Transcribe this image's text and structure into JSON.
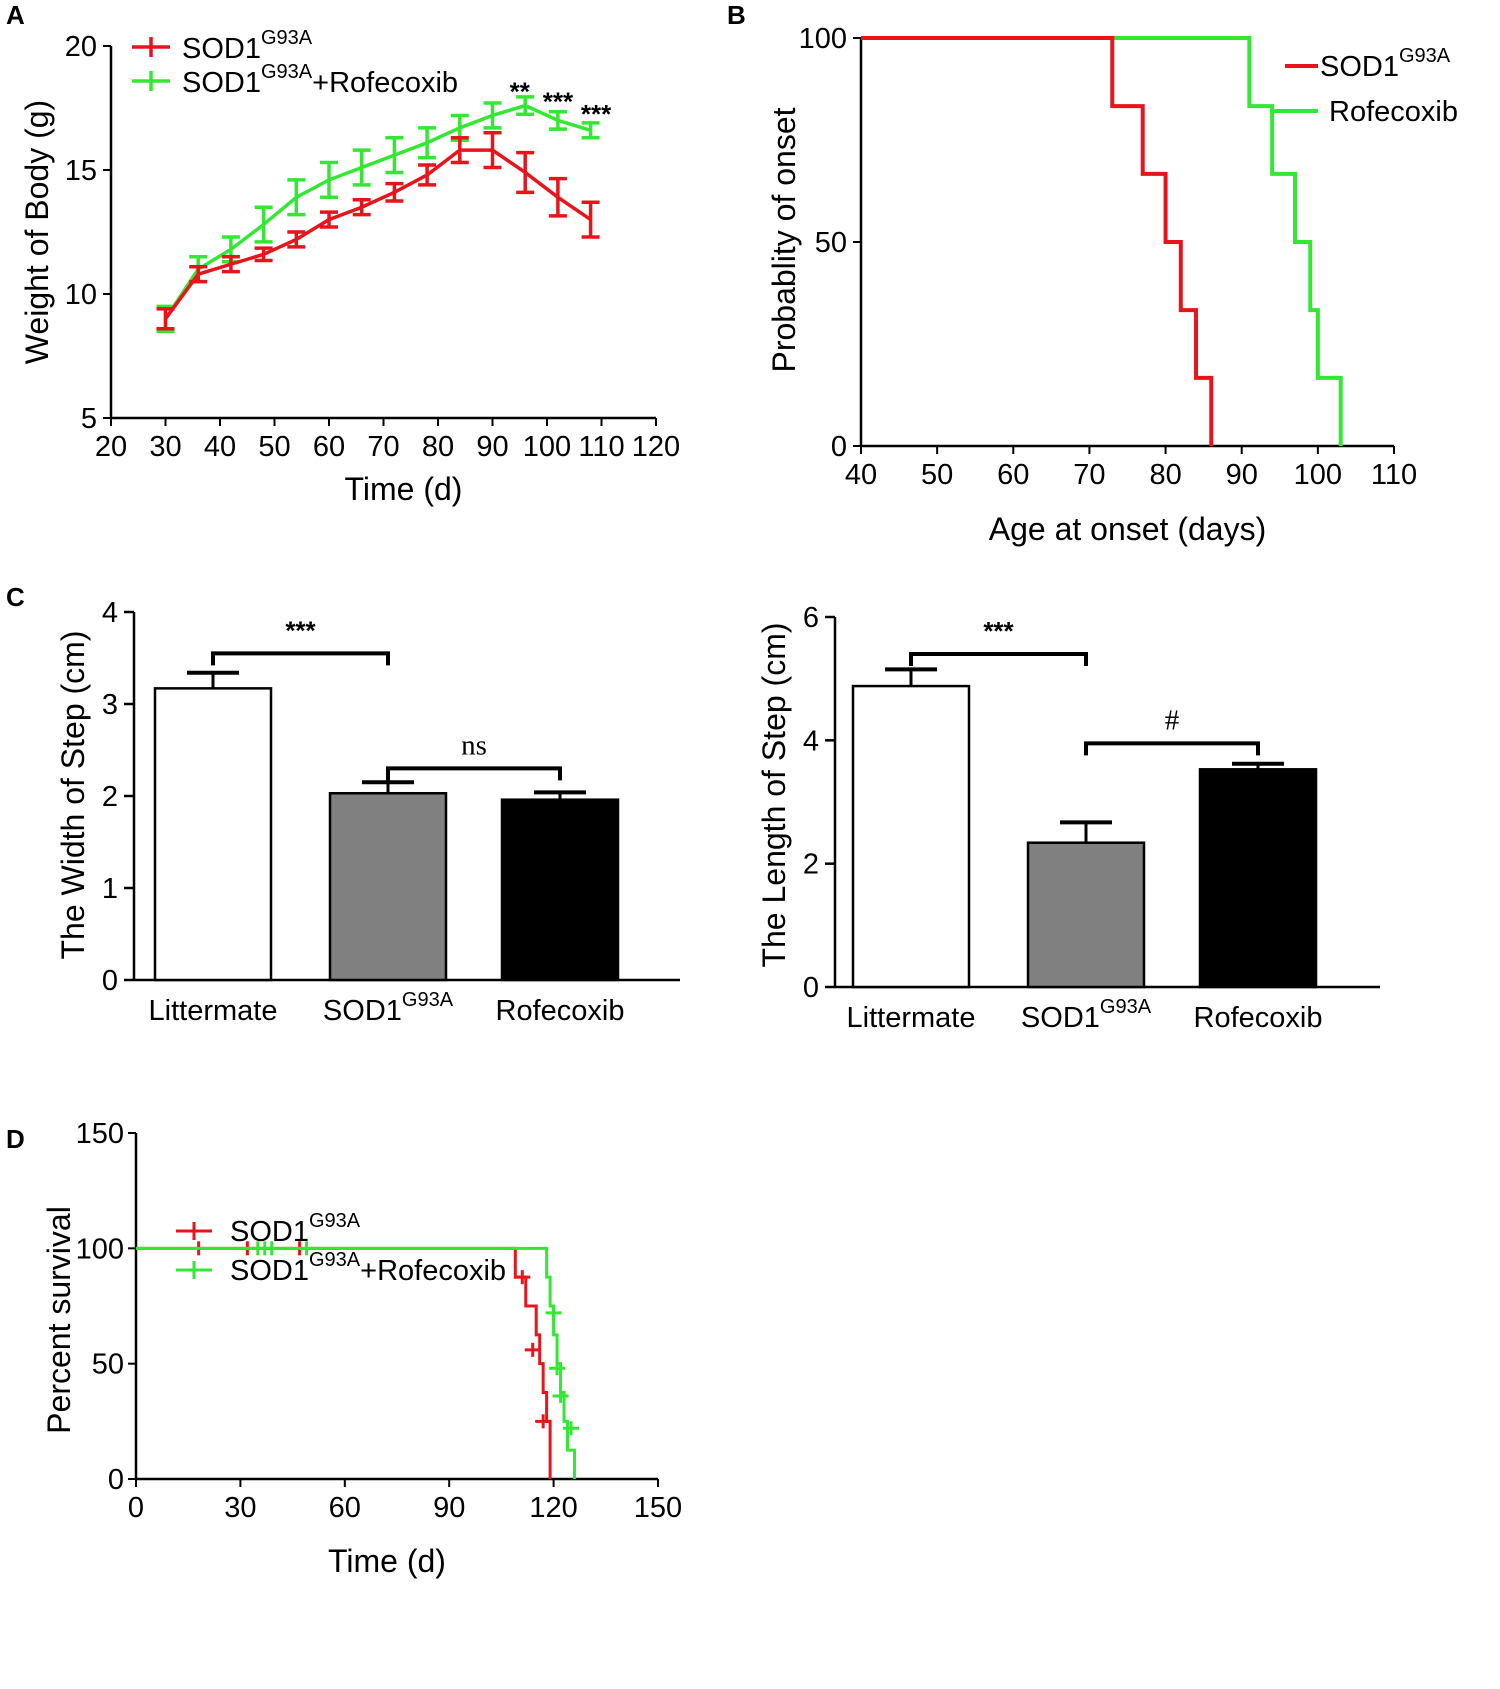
{
  "colors": {
    "sod": "#e8141b",
    "rof": "#33e833",
    "axis": "#000000",
    "gray": "#808080"
  },
  "chart_data": [
    {
      "panel": "A",
      "type": "line",
      "xlabel": "Time (d)",
      "ylabel": "Weight of Body (g)",
      "xlim": [
        20,
        120
      ],
      "ylim": [
        5,
        20
      ],
      "xticks": [
        "20",
        "30",
        "40",
        "50",
        "60",
        "70",
        "80",
        "90",
        "100",
        "110",
        "120"
      ],
      "yticks": [
        "5",
        "10",
        "15",
        "20"
      ],
      "series": [
        {
          "name_base": "SOD1",
          "name_sup": "G93A",
          "name_suffix": "",
          "x": [
            30,
            36,
            42,
            48,
            54,
            60,
            66,
            72,
            78,
            84,
            90,
            96,
            102,
            108
          ],
          "y": [
            9.0,
            10.8,
            11.2,
            11.6,
            12.2,
            13.0,
            13.5,
            14.1,
            14.8,
            15.8,
            15.8,
            14.9,
            13.9,
            13.0
          ],
          "err": [
            0.4,
            0.3,
            0.3,
            0.25,
            0.3,
            0.3,
            0.3,
            0.35,
            0.4,
            0.5,
            0.7,
            0.8,
            0.75,
            0.7
          ]
        },
        {
          "name_base": "SOD1",
          "name_sup": "G93A",
          "name_suffix": "+Rofecoxib",
          "x": [
            30,
            36,
            42,
            48,
            54,
            60,
            66,
            72,
            78,
            84,
            90,
            96,
            102,
            108
          ],
          "y": [
            9.0,
            11.0,
            11.8,
            12.8,
            13.9,
            14.6,
            15.1,
            15.6,
            16.1,
            16.7,
            17.2,
            17.6,
            17.0,
            16.6
          ],
          "err": [
            0.5,
            0.5,
            0.5,
            0.7,
            0.7,
            0.7,
            0.7,
            0.7,
            0.6,
            0.5,
            0.5,
            0.35,
            0.35,
            0.3
          ]
        }
      ],
      "annotations": [
        {
          "text": "**",
          "x": 95,
          "y": 18.2
        },
        {
          "text": "***",
          "x": 102,
          "y": 17.8
        },
        {
          "text": "***",
          "x": 109,
          "y": 17.3
        }
      ]
    },
    {
      "panel": "B",
      "type": "step",
      "xlabel": "Age  at onset (days)",
      "ylabel": "Probablity of onset",
      "xlim": [
        40,
        110
      ],
      "ylim": [
        0,
        100
      ],
      "xticks": [
        "40",
        "50",
        "60",
        "70",
        "80",
        "90",
        "100",
        "110"
      ],
      "yticks": [
        "0",
        "50",
        "100"
      ],
      "series": [
        {
          "name_base": "SOD1",
          "name_sup": "G93A",
          "name_suffix": "",
          "x": [
            40,
            73,
            77,
            80,
            82,
            84,
            86
          ],
          "y": [
            100,
            83.3,
            66.7,
            50,
            33.3,
            16.7,
            0
          ]
        },
        {
          "name_base": "Rofecoxib",
          "name_sup": "",
          "name_suffix": "",
          "x": [
            40,
            91,
            94,
            97,
            99,
            100,
            103
          ],
          "y": [
            100,
            83.3,
            66.7,
            50,
            33.3,
            16.7,
            0
          ]
        }
      ]
    },
    {
      "panel": "C",
      "type": "bar",
      "ylabel": "The Width of Step (cm)",
      "ylim": [
        0,
        4
      ],
      "yticks": [
        "0",
        "1",
        "2",
        "3",
        "4"
      ],
      "categories": [
        {
          "base": "Littermate",
          "sup": ""
        },
        {
          "base": "SOD1",
          "sup": "G93A"
        },
        {
          "base": "Rofecoxib",
          "sup": ""
        }
      ],
      "values": [
        3.17,
        2.03,
        1.96
      ],
      "err": [
        0.17,
        0.12,
        0.08
      ],
      "fills": [
        "#ffffff",
        "#808080",
        "#000000"
      ],
      "brackets": [
        {
          "from": 0,
          "to": 1,
          "label": "***",
          "y": 3.55
        },
        {
          "from": 1,
          "to": 2,
          "label": "ns",
          "y": 2.3
        }
      ]
    },
    {
      "panel": "C2",
      "type": "bar",
      "ylabel": "The Length of Step (cm)",
      "ylim": [
        0,
        6
      ],
      "yticks": [
        "0",
        "2",
        "4",
        "6"
      ],
      "categories": [
        {
          "base": "Littermate",
          "sup": ""
        },
        {
          "base": "SOD1",
          "sup": "G93A"
        },
        {
          "base": "Rofecoxib",
          "sup": ""
        }
      ],
      "values": [
        4.88,
        2.34,
        3.53
      ],
      "err": [
        0.27,
        0.33,
        0.09
      ],
      "fills": [
        "#ffffff",
        "#808080",
        "#000000"
      ],
      "brackets": [
        {
          "from": 0,
          "to": 1,
          "label": "***",
          "y": 5.4
        },
        {
          "from": 1,
          "to": 2,
          "label": "#",
          "y": 3.95
        }
      ]
    },
    {
      "panel": "D",
      "type": "survival",
      "xlabel": "Time (d)",
      "ylabel": "Percent survival",
      "xlim": [
        0,
        150
      ],
      "ylim": [
        0,
        150
      ],
      "xticks": [
        "0",
        "30",
        "60",
        "90",
        "120",
        "150"
      ],
      "yticks": [
        "0",
        "50",
        "100",
        "150"
      ],
      "series": [
        {
          "name_base": "SOD1",
          "name_sup": "G93A",
          "name_suffix": "",
          "x": [
            0,
            109,
            112,
            115,
            116,
            117,
            118,
            119
          ],
          "y": [
            100,
            87.5,
            75,
            62.5,
            50,
            37.5,
            25,
            0
          ],
          "censor_x": [
            18,
            32,
            47,
            111,
            114,
            117
          ],
          "censor_y": [
            100,
            100,
            100,
            87.5,
            56,
            25
          ]
        },
        {
          "name_base": "SOD1",
          "name_sup": "G93A",
          "name_suffix": "+Rofecoxib",
          "x": [
            0,
            118,
            119,
            120,
            121,
            122,
            123,
            124,
            126
          ],
          "y": [
            100,
            87.5,
            75,
            62.5,
            50,
            37.5,
            25,
            12.5,
            0
          ],
          "censor_x": [
            35,
            37,
            39,
            49,
            120,
            121,
            122,
            125
          ],
          "censor_y": [
            100,
            100,
            100,
            100,
            72,
            48,
            36,
            22
          ]
        }
      ]
    }
  ]
}
